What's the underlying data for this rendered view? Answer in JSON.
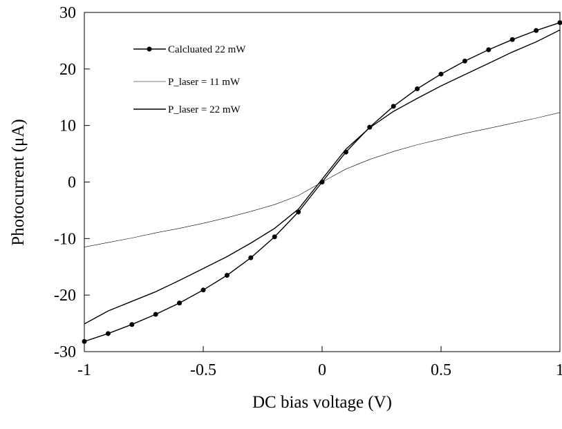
{
  "chart_data": {
    "type": "line",
    "title": "",
    "xlabel": "DC bias voltage (V)",
    "ylabel": "Photocurrent (μA)",
    "xlim": [
      -1,
      1
    ],
    "ylim": [
      -30,
      30
    ],
    "x_ticks": [
      -1,
      -0.5,
      0,
      0.5,
      1
    ],
    "x_tick_labels": [
      "-1",
      "-0.5",
      "0",
      "0.5",
      "1"
    ],
    "y_ticks": [
      -30,
      -20,
      -10,
      0,
      10,
      20,
      30
    ],
    "y_tick_labels": [
      "-30",
      "-20",
      "-10",
      "0",
      "10",
      "20",
      "30"
    ],
    "grid": false,
    "legend_position": "top-left",
    "series": [
      {
        "name": "Calcluated 22 mW",
        "style": "line-with-markers",
        "color": "#000000",
        "x": [
          -1,
          -0.9,
          -0.8,
          -0.7,
          -0.6,
          -0.5,
          -0.4,
          -0.3,
          -0.2,
          -0.1,
          0,
          0.1,
          0.2,
          0.3,
          0.4,
          0.5,
          0.6,
          0.7,
          0.8,
          0.9,
          1
        ],
        "y": [
          -28.2,
          -26.8,
          -25.2,
          -23.4,
          -21.4,
          -19.1,
          -16.5,
          -13.4,
          -9.7,
          -5.3,
          0,
          5.3,
          9.7,
          13.4,
          16.5,
          19.1,
          21.4,
          23.4,
          25.2,
          26.8,
          28.2
        ]
      },
      {
        "name": "P_laser = 11 mW",
        "style": "thin-line",
        "color": "#000000",
        "x": [
          -1,
          -0.9,
          -0.8,
          -0.7,
          -0.6,
          -0.5,
          -0.4,
          -0.3,
          -0.2,
          -0.1,
          0,
          0.1,
          0.2,
          0.3,
          0.4,
          0.5,
          0.6,
          0.7,
          0.8,
          0.9,
          1
        ],
        "y": [
          -11.5,
          -10.7,
          -9.9,
          -9.0,
          -8.2,
          -7.3,
          -6.3,
          -5.2,
          -4.0,
          -2.4,
          0,
          2.3,
          4.0,
          5.4,
          6.6,
          7.6,
          8.6,
          9.5,
          10.4,
          11.3,
          12.3
        ]
      },
      {
        "name": "P_laser = 22 mW",
        "style": "line",
        "color": "#000000",
        "x": [
          -1,
          -0.9,
          -0.8,
          -0.7,
          -0.6,
          -0.5,
          -0.4,
          -0.3,
          -0.2,
          -0.1,
          0,
          0.1,
          0.2,
          0.3,
          0.4,
          0.5,
          0.6,
          0.7,
          0.8,
          0.9,
          1
        ],
        "y": [
          -25.1,
          -22.8,
          -21.1,
          -19.4,
          -17.4,
          -15.3,
          -13.2,
          -10.8,
          -8.2,
          -4.8,
          0.5,
          5.8,
          9.6,
          12.5,
          14.8,
          17.0,
          19.0,
          21.0,
          23.0,
          24.8,
          26.9
        ]
      }
    ]
  }
}
